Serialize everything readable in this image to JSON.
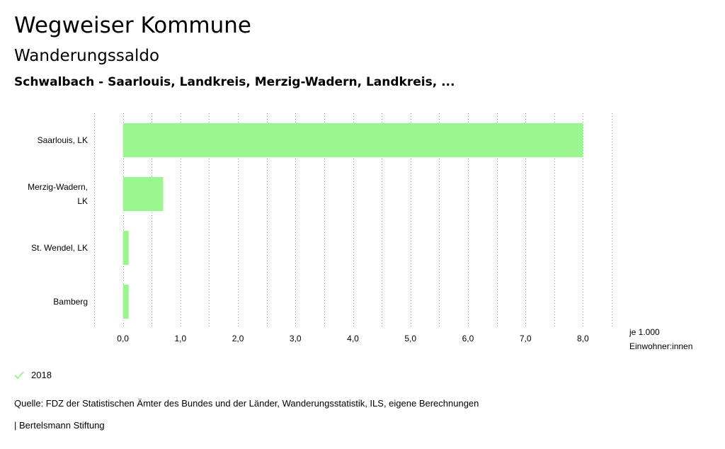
{
  "header": {
    "title": "Wegweiser Kommune",
    "subtitle": "Wanderungssaldo",
    "regions": "Schwalbach - Saarlouis, Landkreis, Merzig-Wadern, Landkreis, ..."
  },
  "chart_data": {
    "type": "bar",
    "orientation": "horizontal",
    "categories": [
      [
        "Saarlouis, LK"
      ],
      [
        "Merzig-Wadern,",
        "LK"
      ],
      [
        "St. Wendel, LK"
      ],
      [
        "Bamberg"
      ]
    ],
    "series": [
      {
        "name": "2018",
        "values": [
          8.0,
          0.7,
          0.1,
          0.1
        ]
      }
    ],
    "xlim": [
      -0.5,
      8.5
    ],
    "xticks": [
      0,
      1,
      2,
      3,
      4,
      5,
      6,
      7,
      8
    ],
    "xtick_labels": [
      "0,0",
      "1,0",
      "2,0",
      "3,0",
      "4,0",
      "5,0",
      "6,0",
      "7,0",
      "8,0"
    ],
    "grid": "vertical-dotted",
    "bar_color": "#9af78f"
  },
  "axis": {
    "unit_line1": "je 1.000",
    "unit_line2": "Einwohner:innen"
  },
  "legend": {
    "label": "2018",
    "check_color": "#9af78f"
  },
  "footer": {
    "source": "Quelle: FDZ der Statistischen Ämter des Bundes und der Länder, Wanderungsstatistik, ILS, eigene Berechnungen",
    "brand": "| Bertelsmann Stiftung"
  }
}
